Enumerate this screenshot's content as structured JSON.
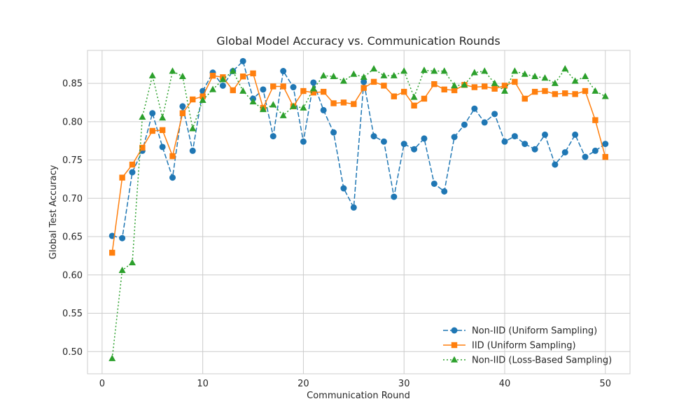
{
  "chart_data": {
    "type": "line",
    "title": "Global Model Accuracy vs. Communication Rounds",
    "xlabel": "Communication Round",
    "ylabel": "Global Test Accuracy",
    "xlim": [
      -1.45,
      52.45
    ],
    "ylim": [
      0.471,
      0.893
    ],
    "xticks": [
      0,
      10,
      20,
      30,
      40,
      50
    ],
    "yticks": [
      0.5,
      0.55,
      0.6,
      0.65,
      0.7,
      0.75,
      0.8,
      0.85
    ],
    "grid": true,
    "legend_position": "lower-right",
    "x": [
      1,
      2,
      3,
      4,
      5,
      6,
      7,
      8,
      9,
      10,
      11,
      12,
      13,
      14,
      15,
      16,
      17,
      18,
      19,
      20,
      21,
      22,
      23,
      24,
      25,
      26,
      27,
      28,
      29,
      30,
      31,
      32,
      33,
      34,
      35,
      36,
      37,
      38,
      39,
      40,
      41,
      42,
      43,
      44,
      45,
      46,
      47,
      48,
      49,
      50
    ],
    "series": [
      {
        "name": "Non-IID (Uniform Sampling)",
        "color": "#1f77b4",
        "linestyle": "dashed",
        "marker": "circle",
        "values": [
          0.651,
          0.648,
          0.734,
          0.762,
          0.811,
          0.767,
          0.727,
          0.82,
          0.762,
          0.84,
          0.864,
          0.847,
          0.866,
          0.879,
          0.83,
          0.842,
          0.781,
          0.866,
          0.845,
          0.774,
          0.851,
          0.815,
          0.786,
          0.713,
          0.688,
          0.852,
          0.781,
          0.774,
          0.702,
          0.771,
          0.764,
          0.778,
          0.719,
          0.709,
          0.78,
          0.796,
          0.817,
          0.799,
          0.81,
          0.774,
          0.781,
          0.771,
          0.764,
          0.783,
          0.744,
          0.76,
          0.783,
          0.754,
          0.762,
          0.771
        ]
      },
      {
        "name": "IID (Uniform Sampling)",
        "color": "#ff7f0e",
        "linestyle": "solid",
        "marker": "square",
        "values": [
          0.629,
          0.727,
          0.744,
          0.766,
          0.788,
          0.789,
          0.755,
          0.811,
          0.829,
          0.833,
          0.86,
          0.858,
          0.841,
          0.859,
          0.863,
          0.818,
          0.846,
          0.846,
          0.82,
          0.84,
          0.838,
          0.839,
          0.824,
          0.825,
          0.823,
          0.844,
          0.852,
          0.847,
          0.833,
          0.839,
          0.821,
          0.83,
          0.849,
          0.842,
          0.841,
          0.848,
          0.845,
          0.846,
          0.843,
          0.847,
          0.852,
          0.83,
          0.839,
          0.84,
          0.836,
          0.837,
          0.836,
          0.84,
          0.802,
          0.754
        ]
      },
      {
        "name": "Non-IID (Loss-Based Sampling)",
        "color": "#2ca02c",
        "linestyle": "dotted",
        "marker": "triangle",
        "values": [
          0.491,
          0.606,
          0.616,
          0.806,
          0.86,
          0.805,
          0.866,
          0.859,
          0.791,
          0.828,
          0.842,
          0.855,
          0.866,
          0.84,
          0.826,
          0.816,
          0.822,
          0.808,
          0.82,
          0.818,
          0.843,
          0.86,
          0.859,
          0.853,
          0.862,
          0.858,
          0.869,
          0.86,
          0.86,
          0.866,
          0.832,
          0.867,
          0.866,
          0.866,
          0.847,
          0.848,
          0.864,
          0.866,
          0.85,
          0.84,
          0.866,
          0.862,
          0.859,
          0.857,
          0.85,
          0.869,
          0.853,
          0.859,
          0.84,
          0.833
        ]
      }
    ]
  }
}
